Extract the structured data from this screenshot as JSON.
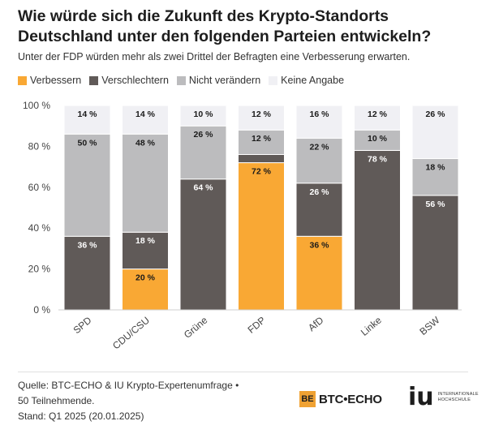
{
  "title_line1": "Wie würde sich die Zukunft des Krypto-Standorts",
  "title_line2": "Deutschland unter den folgenden Parteien entwickeln?",
  "subtitle": "Unter der FDP würden mehr als zwei Drittel der Befragten eine Verbesserung erwarten.",
  "legend": [
    {
      "label": "Verbessern",
      "color": "#f9a834"
    },
    {
      "label": "Verschlechtern",
      "color": "#605a58"
    },
    {
      "label": "Nicht verändern",
      "color": "#bcbcbe"
    },
    {
      "label": "Keine Angabe",
      "color": "#f0f0f4"
    }
  ],
  "chart_data": {
    "type": "bar",
    "stacked": true,
    "categories": [
      "SPD",
      "CDU/CSU",
      "Grüne",
      "FDP",
      "AfD",
      "Linke",
      "BSW"
    ],
    "y_ticks": [
      "0 %",
      "20 %",
      "40 %",
      "60 %",
      "80 %",
      "100 %"
    ],
    "ylim": [
      0,
      100
    ],
    "series": [
      {
        "name": "Verbessern",
        "color": "#f9a834",
        "values": [
          0,
          20,
          0,
          72,
          36,
          0,
          0
        ]
      },
      {
        "name": "Verschlechtern",
        "color": "#605a58",
        "values": [
          36,
          18,
          64,
          4,
          26,
          78,
          56
        ]
      },
      {
        "name": "Nicht verändern",
        "color": "#bcbcbe",
        "values": [
          50,
          48,
          26,
          12,
          22,
          10,
          18
        ]
      },
      {
        "name": "Keine Angabe",
        "color": "#f0f0f4",
        "values": [
          14,
          14,
          10,
          12,
          16,
          12,
          26
        ]
      }
    ],
    "labels": [
      {
        "series": "Verbessern",
        "values": [
          "",
          "20 %",
          "",
          "72 %",
          "36 %",
          "",
          ""
        ]
      },
      {
        "series": "Verschlechtern",
        "values": [
          "36 %",
          "18 %",
          "64 %",
          "",
          "26 %",
          "78 %",
          "56 %"
        ]
      },
      {
        "series": "Nicht verändern",
        "values": [
          "50 %",
          "48 %",
          "26 %",
          "12 %",
          "22 %",
          "10 %",
          "18 %"
        ]
      },
      {
        "series": "Keine Angabe",
        "values": [
          "14 %",
          "14 %",
          "10 %",
          "12 %",
          "16 %",
          "12 %",
          "26 %"
        ]
      }
    ]
  },
  "source": {
    "line1": "Quelle: BTC-ECHO & IU Krypto-Expertenumfrage •",
    "line2": "50 Teilnehmende.",
    "line3": "Stand: Q1 2025 (20.01.2025)"
  },
  "logos": {
    "btc_box": "BE",
    "btc_text": "BTC•ECHO",
    "iu_mark": "iu",
    "iu_line1": "INTERNATIONALE",
    "iu_line2": "HOCHSCHULE"
  }
}
